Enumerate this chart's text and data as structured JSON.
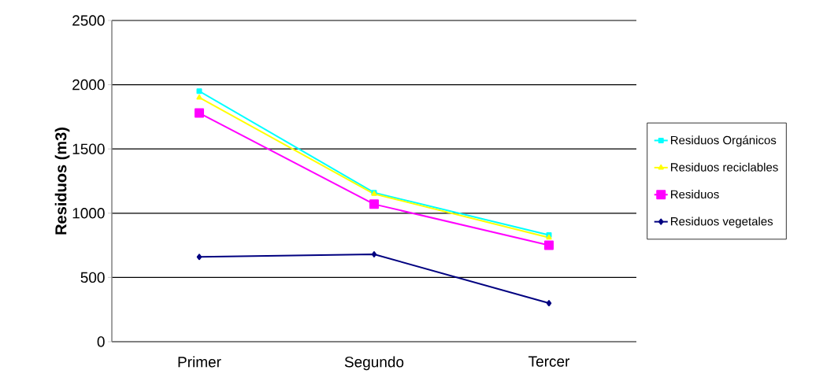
{
  "chart_data": {
    "type": "line",
    "ylabel": "Residuos (m3)",
    "categories": [
      "Primer",
      "Segundo",
      "Tercer"
    ],
    "series": [
      {
        "name": "Residuos Orgánicos",
        "color": "#00ffff",
        "marker": "square",
        "values": [
          1950,
          1160,
          830
        ]
      },
      {
        "name": "Residuos reciclables",
        "color": "#ffff00",
        "marker": "triangle",
        "values": [
          1900,
          1150,
          810
        ]
      },
      {
        "name": "Residuos",
        "color": "#ff00ff",
        "marker": "square",
        "values": [
          1780,
          1070,
          750
        ]
      },
      {
        "name": "Residuos vegetales",
        "color": "#000080",
        "marker": "diamond",
        "values": [
          660,
          680,
          300
        ]
      }
    ],
    "ylim": [
      0,
      2500
    ],
    "yticks": [
      0,
      500,
      1000,
      1500,
      2000,
      2500
    ],
    "grid": "y",
    "legend": "right",
    "line_style": "solid"
  }
}
